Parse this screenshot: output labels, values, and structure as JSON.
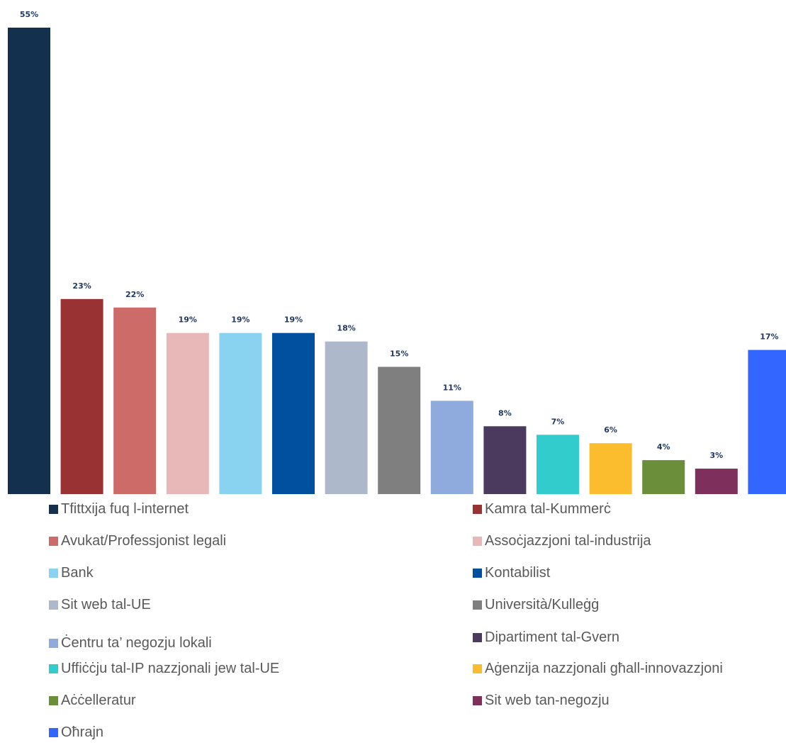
{
  "chart_data": {
    "type": "bar",
    "ylim": [
      0,
      55
    ],
    "grid": false,
    "legend_placement": "bottom",
    "series": [
      {
        "name": "Tfittxija fuq l-internet",
        "value": 55,
        "label": "55%",
        "color": "#14304f"
      },
      {
        "name": "Kamra tal-Kummerċ",
        "value": 23,
        "label": "23%",
        "color": "#993333"
      },
      {
        "name": "Avukat/Professjonist legali",
        "value": 22,
        "label": "22%",
        "color": "#cc6b68"
      },
      {
        "name": "Assoċjazzjoni tal-industrija",
        "value": 19,
        "label": "19%",
        "color": "#e8b8b8"
      },
      {
        "name": "Bank",
        "value": 19,
        "label": "19%",
        "color": "#89d3f0"
      },
      {
        "name": "Kontabilist",
        "value": 19,
        "label": "19%",
        "color": "#0050a0"
      },
      {
        "name": "Sit web tal-UE",
        "value": 18,
        "label": "18%",
        "color": "#adb9cb"
      },
      {
        "name": "Università/Kulleġġ",
        "value": 15,
        "label": "15%",
        "color": "#7f7f7f"
      },
      {
        "name": "Ċentru ta’ negozju lokali",
        "value": 11,
        "label": "11%",
        "color": "#8faadc"
      },
      {
        "name": "Dipartiment tal-Gvern",
        "value": 8,
        "label": "8%",
        "color": "#4b3a5e"
      },
      {
        "name": "Uffiċċju tal-IP nazzjonali jew tal-UE",
        "value": 7,
        "label": "7%",
        "color": "#33cccc"
      },
      {
        "name": "Aġenzija nazzjonali għall-innovazzjoni",
        "value": 6,
        "label": "6%",
        "color": "#fbbc2d"
      },
      {
        "name": "Aċċelleratur",
        "value": 4,
        "label": "4%",
        "color": "#6b8e3a"
      },
      {
        "name": "Sit web tan-negozju",
        "value": 3,
        "label": "3%",
        "color": "#7f2f5b"
      },
      {
        "name": "Oħrajn",
        "value": 17,
        "label": "17%",
        "color": "#3366ff"
      }
    ]
  }
}
